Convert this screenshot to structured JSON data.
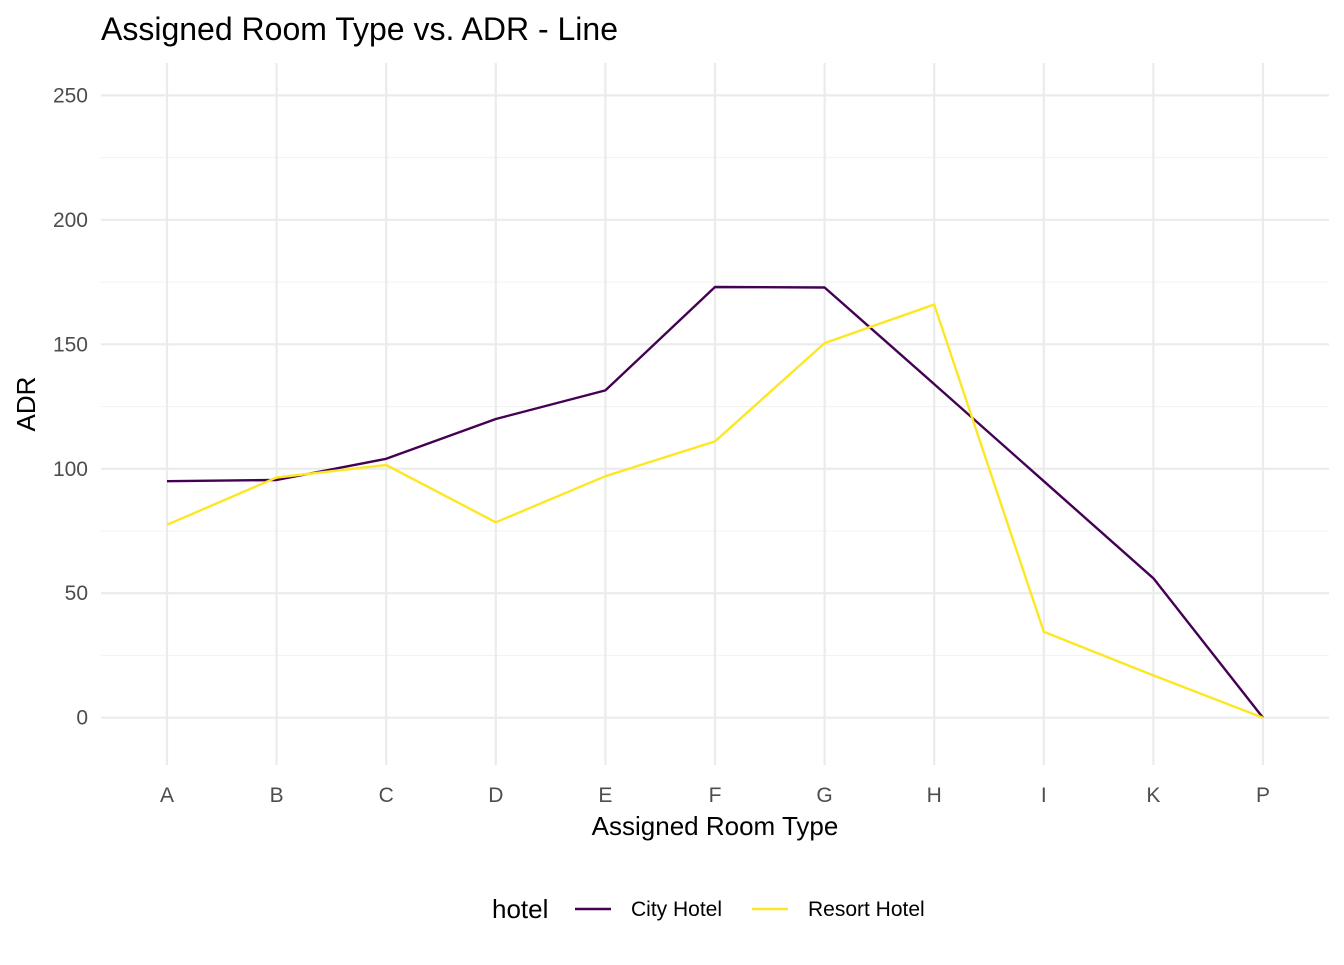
{
  "chart_data": {
    "type": "line",
    "title": "Assigned Room Type vs. ADR - Line",
    "xlabel": "Assigned Room Type",
    "ylabel": "ADR",
    "categories": [
      "A",
      "B",
      "C",
      "D",
      "E",
      "F",
      "G",
      "H",
      "I",
      "K",
      "P"
    ],
    "y_ticks": [
      "0",
      "50",
      "100",
      "150",
      "200",
      "250"
    ],
    "ylim": [
      -19,
      263
    ],
    "grid": true,
    "legend": {
      "title": "hotel",
      "position": "bottom"
    },
    "series": [
      {
        "name": "City Hotel",
        "color": "#440154",
        "values": [
          95.0,
          95.5,
          104.0,
          120.0,
          131.5,
          173.0,
          172.8,
          134.0,
          95.0,
          56.0,
          0.0
        ]
      },
      {
        "name": "Resort Hotel",
        "color": "#FDE725",
        "values": [
          77.5,
          96.5,
          101.5,
          78.5,
          97.0,
          111.0,
          150.5,
          166.0,
          34.5,
          17.0,
          0.0
        ]
      }
    ]
  }
}
